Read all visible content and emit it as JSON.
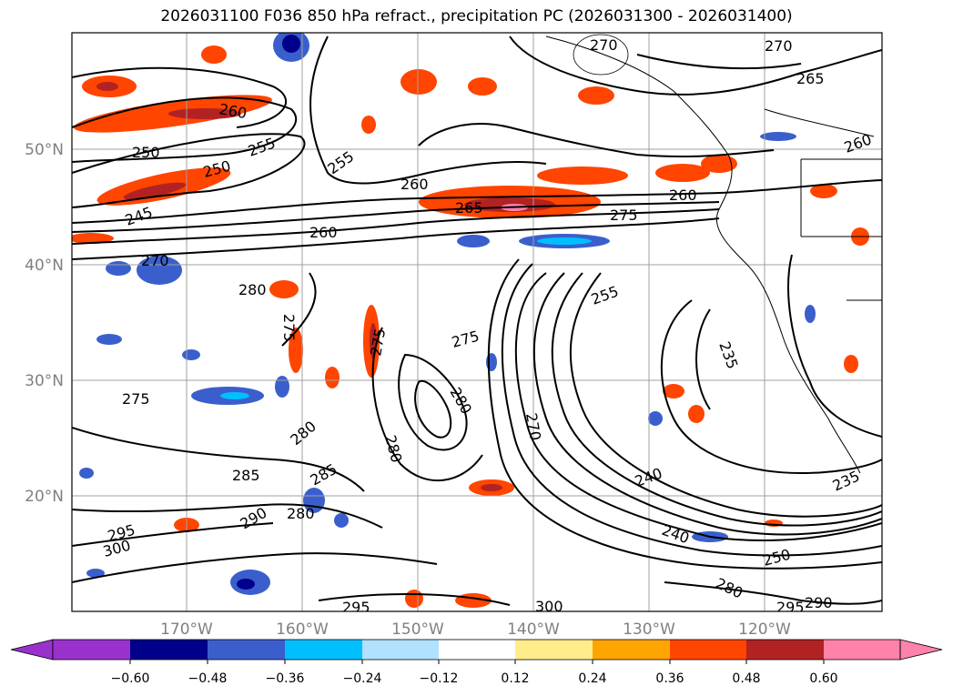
{
  "title": "2026031100 F036 850 hPa refract., precipitation PC (2026031300 - 2026031400)",
  "map": {
    "lat_ticks": [
      "50°N",
      "40°N",
      "30°N",
      "20°N"
    ],
    "lon_ticks": [
      "170°W",
      "160°W",
      "150°W",
      "140°W",
      "130°W",
      "120°W"
    ],
    "contour_labels": [
      "250",
      "255",
      "250",
      "260",
      "245",
      "255",
      "260",
      "260",
      "265",
      "275",
      "260",
      "270",
      "265",
      "270",
      "260",
      "270",
      "280",
      "275",
      "275",
      "255",
      "235",
      "275",
      "280",
      "280",
      "270",
      "285",
      "280",
      "285",
      "290",
      "295",
      "300",
      "295",
      "240",
      "240",
      "250",
      "280",
      "300",
      "235",
      "290",
      "295",
      "275",
      "280"
    ],
    "colors": {
      "contour": "#000000",
      "tick_text": "#808080",
      "grid": "#a0a0a0",
      "coast": "#000000"
    }
  },
  "colorbar": {
    "tick_labels": [
      "−0.60",
      "−0.48",
      "−0.36",
      "−0.24",
      "−0.12",
      "0.12",
      "0.24",
      "0.36",
      "0.48",
      "0.60"
    ],
    "colors": [
      "#9932cc",
      "#00008b",
      "#3a5fcd",
      "#00bfff",
      "#b0e2ff",
      "#ffffff",
      "#ffec8b",
      "#ffa500",
      "#ff4500",
      "#b22222",
      "#ff82ab"
    ]
  }
}
